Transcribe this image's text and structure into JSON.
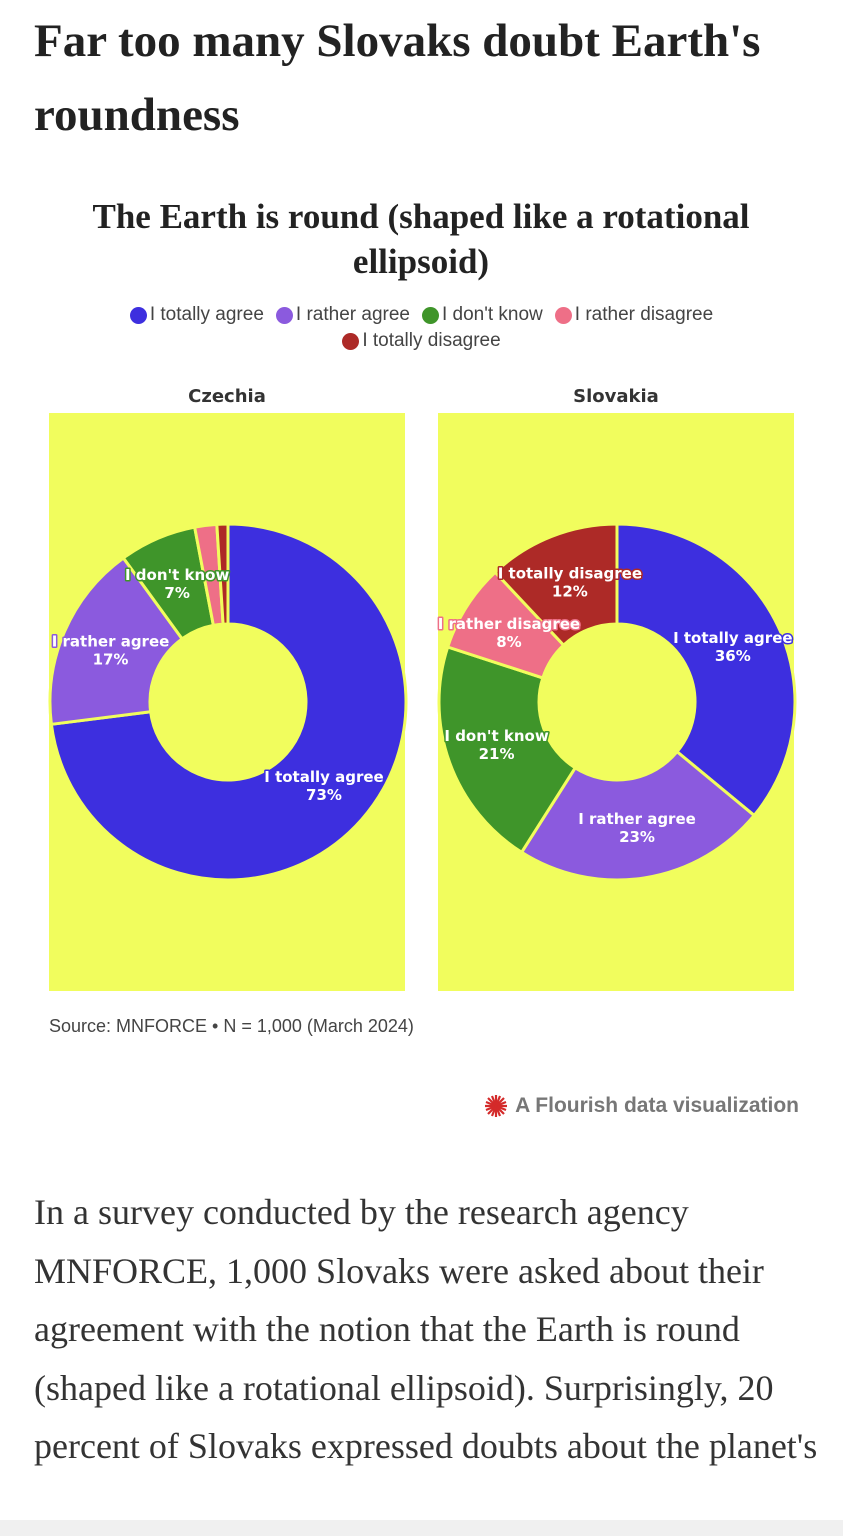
{
  "headline": "Far too many Slovaks doubt Earth's roundness",
  "figure": {
    "title": "The Earth is round (shaped like a rotational ellipsoid)",
    "source": "Source: MNFORCE • N = 1,000 (March 2024)",
    "credit": "A Flourish data visualization"
  },
  "chart_data": [
    {
      "type": "donut",
      "title": "Czechia",
      "categories": [
        "I totally agree",
        "I rather agree",
        "I don't know",
        "I rather disagree",
        "I totally disagree"
      ],
      "values": [
        73,
        17,
        7,
        2,
        1
      ],
      "value_labels": [
        "73%",
        "17%",
        "7%",
        null,
        null
      ],
      "colors": [
        "#3d2fdf",
        "#8b5ade",
        "#3f952a",
        "#ee6f87",
        "#ad2a27"
      ]
    },
    {
      "type": "donut",
      "title": "Slovakia",
      "categories": [
        "I totally agree",
        "I rather agree",
        "I don't know",
        "I rather disagree",
        "I totally disagree"
      ],
      "values": [
        36,
        23,
        21,
        8,
        12
      ],
      "value_labels": [
        "36%",
        "23%",
        "21%",
        "8%",
        "12%"
      ],
      "colors": [
        "#3d2fdf",
        "#8b5ade",
        "#3f952a",
        "#ee6f87",
        "#ad2a27"
      ]
    }
  ],
  "article": {
    "paragraph": "In a survey conducted by the research agency MNFORCE, 1,000 Slovaks were asked about their agreement with the notion that the Earth is round (shaped like a rotational ellipsoid). Surprisingly, 20 percent of Slovaks expressed doubts about the planet's"
  }
}
